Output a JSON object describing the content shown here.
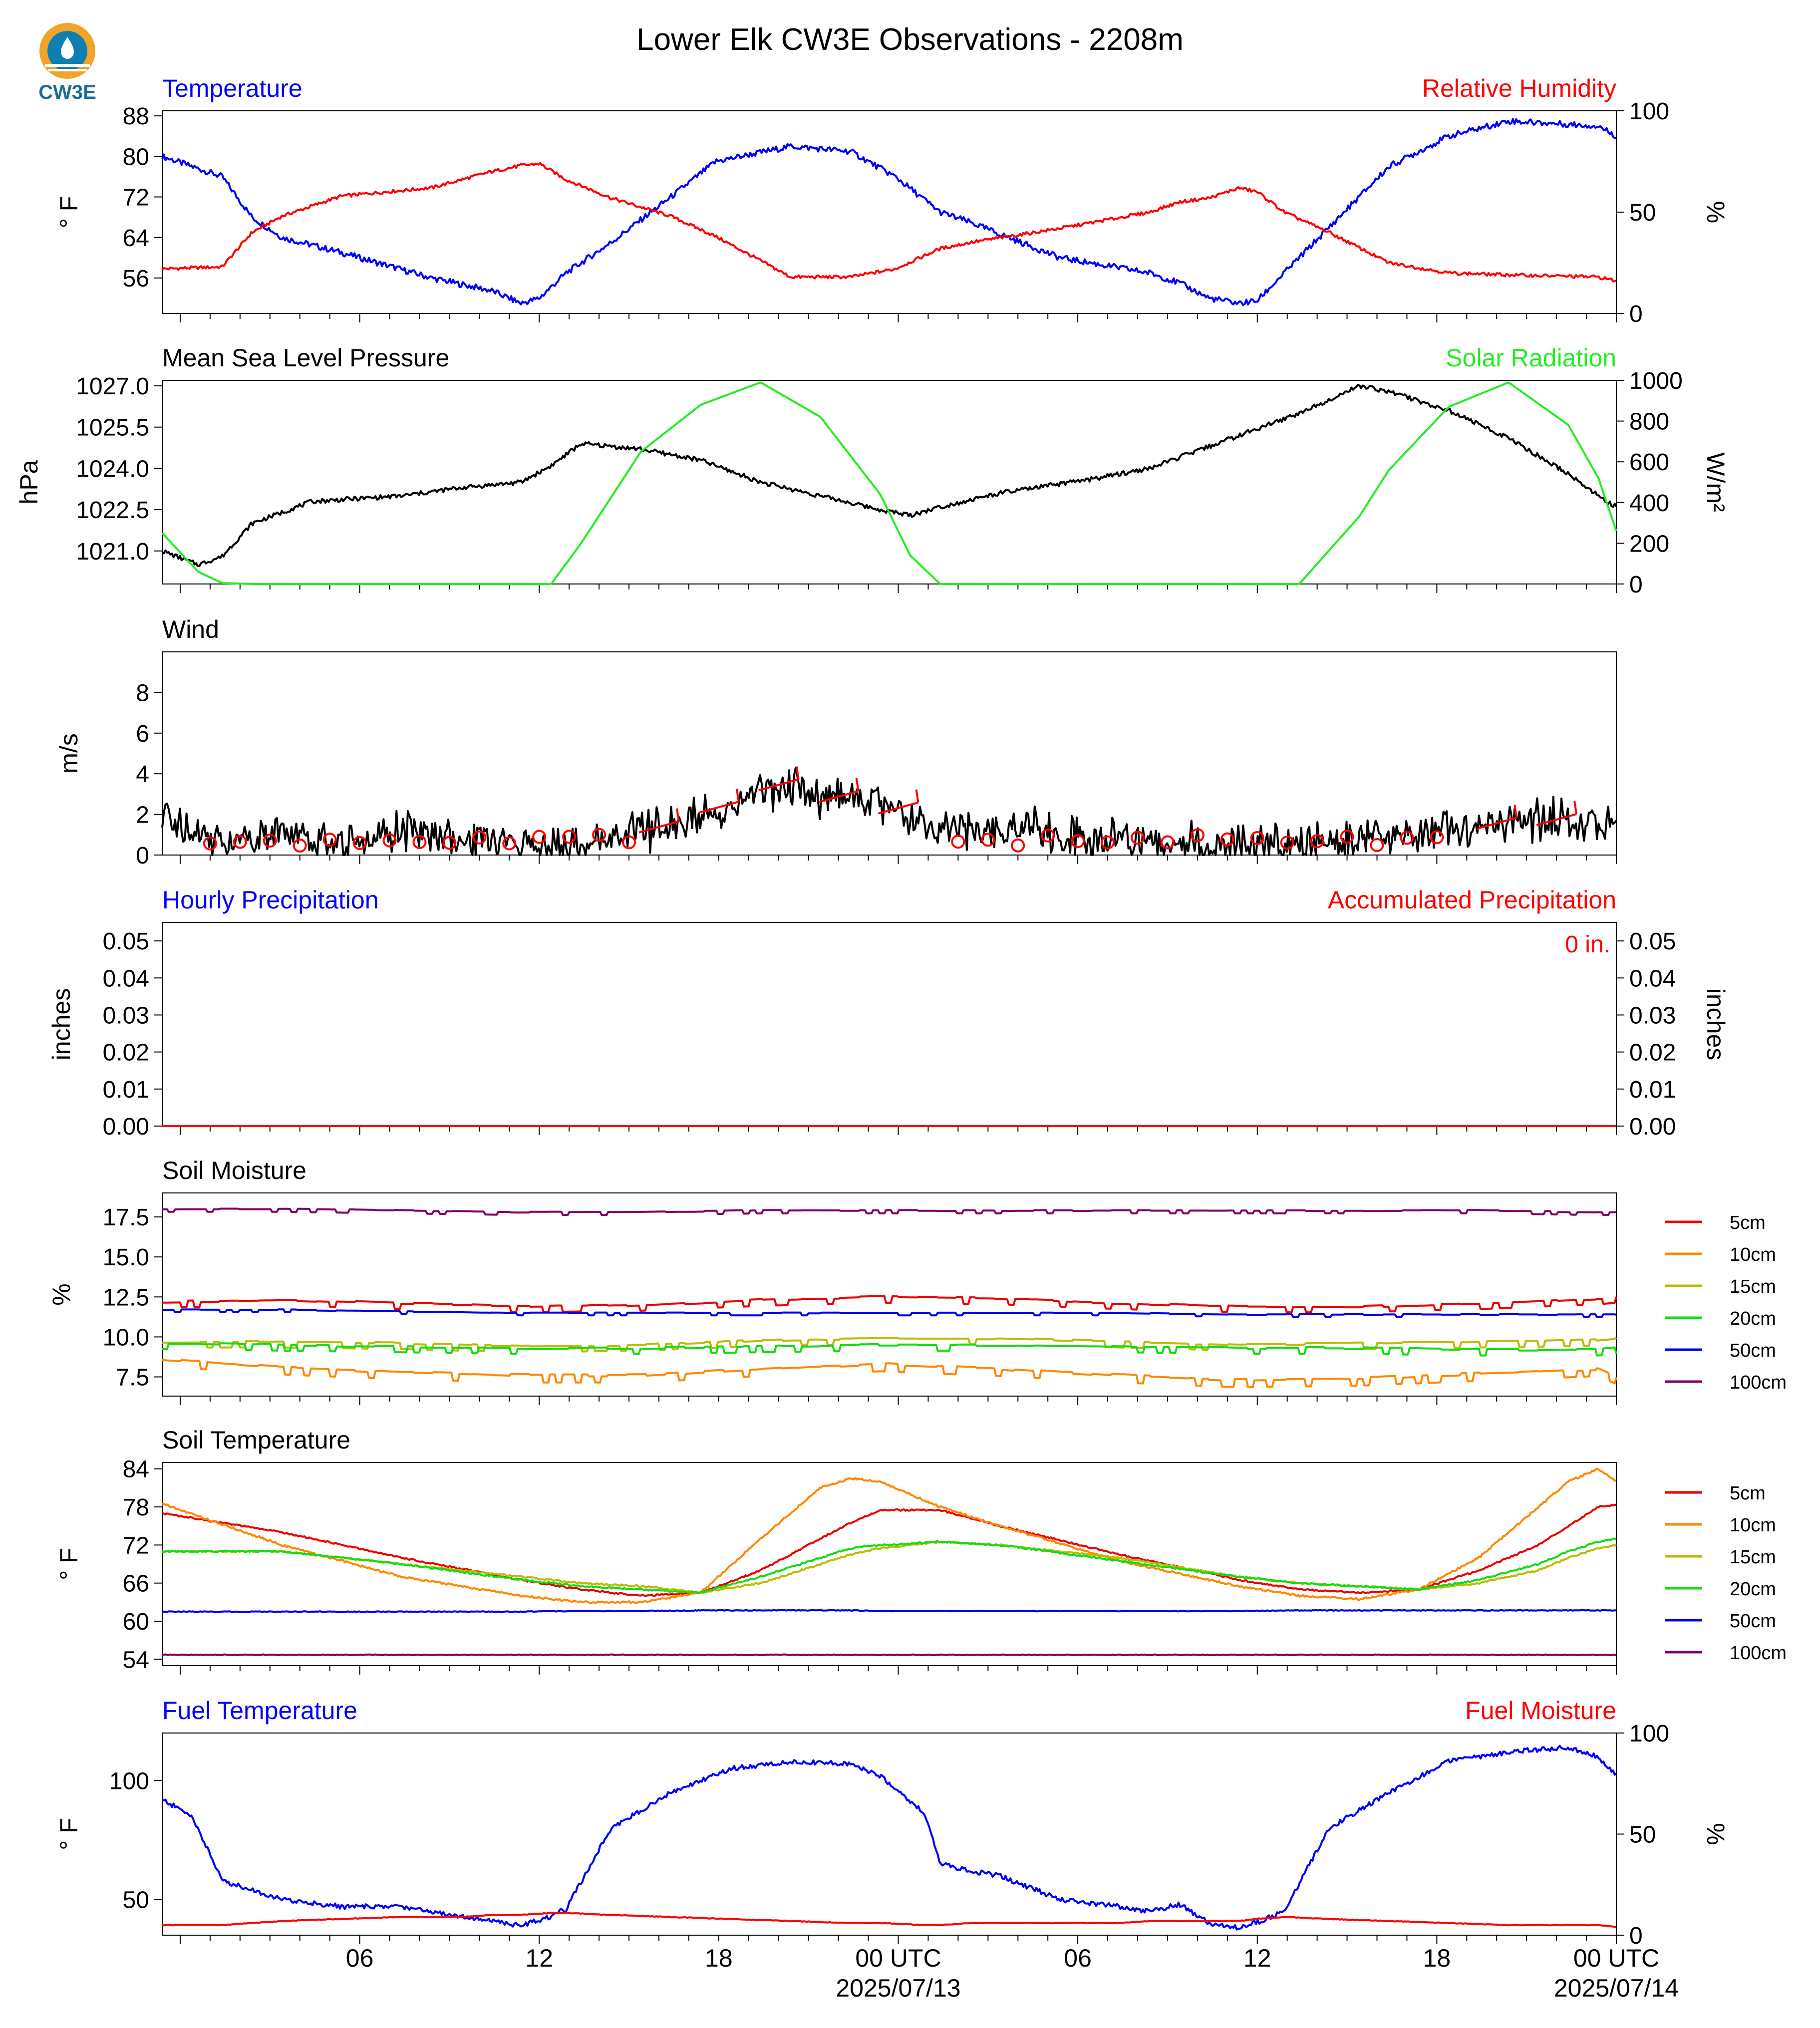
{
  "page": {
    "title": "Lower Elk CW3E Observations - 2208m",
    "logo_text": "CW3E",
    "x_ticks": [
      "06",
      "12",
      "18",
      "00 UTC",
      "06",
      "12",
      "18",
      "00 UTC"
    ],
    "x_dates": [
      "2025/07/13",
      "2025/07/14"
    ]
  },
  "colors": {
    "temperature": "#0000ff",
    "humidity": "#ff0000",
    "pressure": "#000000",
    "solar": "#22ee22",
    "wind": "#000000",
    "barbs": "#ff0000",
    "d5": "#ee0000",
    "d10": "#ff8800",
    "d15": "#bbbb00",
    "d20": "#11dd11",
    "d50": "#0000ee",
    "d100": "#800060"
  },
  "legend_labels": [
    "5cm",
    "10cm",
    "15cm",
    "20cm",
    "50cm",
    "100cm"
  ],
  "chart_data": [
    {
      "type": "line",
      "left_title": "Temperature",
      "right_title": "Relative Humidity",
      "ylabel": "° F",
      "ylabel2": "%",
      "yticks": [
        "56",
        "64",
        "72",
        "80",
        "88"
      ],
      "yticks2": [
        "0",
        "50",
        "100"
      ],
      "ylim": [
        49,
        89
      ],
      "ylim2": [
        0,
        100
      ],
      "x_hours": [
        0,
        2,
        3,
        4,
        6,
        9,
        11,
        12,
        12.6,
        13.5,
        15,
        17,
        18.5,
        21,
        23,
        24.5,
        26,
        27,
        30,
        33,
        34,
        35,
        36,
        36.6,
        37.5,
        39,
        41,
        43,
        45,
        48,
        48.6
      ],
      "series": [
        {
          "key": "temp",
          "axis": "left",
          "values": [
            80,
            76,
            68,
            64,
            61,
            56,
            53.5,
            51,
            52,
            57,
            63,
            72,
            79,
            82,
            81,
            76,
            69,
            67,
            60,
            57,
            55,
            52,
            51,
            51.5,
            57,
            66,
            78,
            84,
            87,
            86,
            84
          ]
        },
        {
          "key": "rh",
          "axis": "right",
          "values": [
            22,
            23,
            40,
            48,
            58,
            62,
            70,
            73,
            74,
            66,
            57,
            48,
            38,
            18,
            18,
            22,
            32,
            35,
            42,
            50,
            55,
            57,
            62,
            60,
            50,
            40,
            25,
            20,
            19,
            18,
            16
          ]
        }
      ]
    },
    {
      "type": "line",
      "left_title": "Mean Sea Level Pressure",
      "right_title": "Solar Radiation",
      "ylabel": "hPa",
      "ylabel2": "W/m²",
      "yticks": [
        "1021.0",
        "1022.5",
        "1024.0",
        "1025.5",
        "1027.0"
      ],
      "yticks2": [
        "0",
        "200",
        "400",
        "600",
        "800",
        "1000"
      ],
      "ylim": [
        1019.8,
        1027.2
      ],
      "ylim2": [
        0,
        1000
      ],
      "x_hours": [
        0,
        1.2,
        2,
        3,
        5,
        8,
        10,
        12,
        13,
        14,
        16,
        18,
        20,
        22,
        24,
        25,
        26,
        28,
        31,
        33,
        35,
        37,
        38,
        40,
        41,
        43,
        45,
        47,
        48,
        48.6
      ],
      "series": [
        {
          "key": "pressure",
          "axis": "left",
          "values": [
            1021.0,
            1020.5,
            1020.8,
            1022.0,
            1022.8,
            1023.0,
            1023.3,
            1023.5,
            1024.1,
            1024.9,
            1024.7,
            1024.3,
            1023.5,
            1023.0,
            1022.5,
            1022.3,
            1022.6,
            1023.1,
            1023.6,
            1024.0,
            1024.8,
            1025.6,
            1026.0,
            1027.0,
            1026.8,
            1026.1,
            1025.1,
            1023.8,
            1023.0,
            1022.6
          ]
        },
        {
          "key": "solar",
          "axis": "right",
          "values": [
            250,
            60,
            5,
            0,
            0,
            0,
            0,
            0,
            0,
            200,
            650,
            880,
            990,
            820,
            440,
            140,
            0,
            0,
            0,
            0,
            0,
            0,
            0,
            330,
            560,
            870,
            990,
            780,
            520,
            260
          ]
        }
      ]
    },
    {
      "type": "line",
      "left_title": "Wind",
      "right_title": "",
      "ylabel": "m/s",
      "ylabel2": "",
      "yticks": [
        "0",
        "2",
        "4",
        "6",
        "8"
      ],
      "yticks2": [],
      "ylim": [
        0,
        10
      ],
      "ylim2": [
        0,
        10
      ],
      "x_hours": [
        0,
        2,
        4,
        6,
        8,
        10,
        12,
        14,
        16,
        18,
        19,
        20,
        21,
        22,
        23,
        24,
        26,
        28,
        29,
        30,
        32,
        34,
        36,
        38,
        40,
        42,
        44,
        46,
        48,
        48.6
      ],
      "series": [
        {
          "key": "wind",
          "axis": "left",
          "values": [
            1.8,
            0.8,
            1.1,
            0.6,
            1.2,
            0.7,
            0.5,
            0.4,
            1.1,
            1.8,
            2.6,
            3.2,
            3.5,
            2.8,
            2.8,
            2.6,
            1.4,
            1.0,
            1.4,
            0.9,
            0.7,
            0.6,
            0.5,
            0.4,
            0.9,
            1.2,
            1.4,
            1.7,
            1.6,
            1.7
          ]
        }
      ]
    },
    {
      "type": "line",
      "left_title": "Hourly Precipitation",
      "right_title": "Accumulated Precipitation",
      "ylabel": "inches",
      "ylabel2": "inches",
      "yticks": [
        "0.00",
        "0.01",
        "0.02",
        "0.03",
        "0.04",
        "0.05"
      ],
      "yticks2": [
        "0.00",
        "0.01",
        "0.02",
        "0.03",
        "0.04",
        "0.05"
      ],
      "ylim": [
        0,
        0.055
      ],
      "ylim2": [
        0,
        0.055
      ],
      "annotation": "0 in.",
      "x_hours": [
        0,
        48.6
      ],
      "series": [
        {
          "key": "precip",
          "axis": "left",
          "values": [
            0,
            0
          ]
        }
      ]
    },
    {
      "type": "line",
      "left_title": "Soil Moisture",
      "right_title": "",
      "ylabel": "%",
      "ylabel2": "",
      "yticks": [
        "7.5",
        "10.0",
        "12.5",
        "15.0",
        "17.5"
      ],
      "yticks2": [],
      "ylim": [
        6.3,
        19.0
      ],
      "ylim2": [
        6.3,
        19.0
      ],
      "x_hours": [
        0,
        4,
        8,
        12,
        16,
        20,
        24,
        28,
        32,
        36,
        40,
        44,
        48,
        48.6
      ],
      "series": [
        {
          "name": "5cm",
          "key": "d5",
          "axis": "left",
          "values": [
            12.2,
            12.3,
            12.1,
            11.9,
            12.0,
            12.3,
            12.5,
            12.4,
            12.1,
            11.9,
            11.9,
            12.1,
            12.4,
            12.5
          ]
        },
        {
          "name": "10cm",
          "key": "d10",
          "axis": "left",
          "values": [
            8.6,
            8.1,
            7.8,
            7.6,
            7.6,
            8.0,
            8.3,
            8.0,
            7.6,
            7.3,
            7.4,
            7.7,
            8.0,
            7.5
          ]
        },
        {
          "name": "15cm",
          "key": "d15",
          "axis": "left",
          "values": [
            9.7,
            9.7,
            9.6,
            9.4,
            9.5,
            9.8,
            9.9,
            9.9,
            9.7,
            9.5,
            9.6,
            9.7,
            9.8,
            9.9
          ]
        },
        {
          "name": "20cm",
          "key": "d20",
          "axis": "left",
          "values": [
            9.6,
            9.5,
            9.4,
            9.3,
            9.3,
            9.4,
            9.5,
            9.5,
            9.4,
            9.3,
            9.3,
            9.2,
            9.2,
            9.3
          ]
        },
        {
          "name": "50cm",
          "key": "d50",
          "axis": "left",
          "values": [
            11.7,
            11.7,
            11.6,
            11.5,
            11.5,
            11.5,
            11.5,
            11.5,
            11.5,
            11.4,
            11.4,
            11.4,
            11.4,
            11.4
          ]
        },
        {
          "name": "100cm",
          "key": "d100",
          "axis": "left",
          "values": [
            18.0,
            18.0,
            17.9,
            17.8,
            17.8,
            17.9,
            17.9,
            17.9,
            17.9,
            17.9,
            17.9,
            17.9,
            17.8,
            17.8
          ]
        }
      ]
    },
    {
      "type": "line",
      "left_title": "Soil Temperature",
      "right_title": "",
      "ylabel": "° F",
      "ylabel2": "",
      "yticks": [
        "54",
        "60",
        "66",
        "72",
        "78",
        "84"
      ],
      "yticks2": [],
      "ylim": [
        53,
        85
      ],
      "ylim2": [
        53,
        85
      ],
      "x_hours": [
        0,
        4,
        8,
        12,
        14,
        16,
        18,
        20,
        22,
        23,
        24,
        26,
        28,
        32,
        36,
        38,
        40,
        42,
        44,
        46,
        47,
        48,
        48.6
      ],
      "series": [
        {
          "name": "5cm",
          "key": "d5",
          "axis": "left",
          "values": [
            77,
            74,
            70,
            66.5,
            65,
            64,
            64.5,
            68,
            73,
            75.5,
            77.5,
            77.5,
            75,
            70.5,
            66.5,
            65,
            64.5,
            65,
            68,
            72,
            75,
            78,
            78.3
          ]
        },
        {
          "name": "10cm",
          "key": "d10",
          "axis": "left",
          "values": [
            78.5,
            72,
            67,
            64,
            63,
            63,
            64.5,
            73,
            81,
            82.5,
            82,
            78,
            75,
            69.5,
            65.5,
            64,
            63.5,
            65,
            70,
            78,
            82,
            84,
            82
          ]
        },
        {
          "name": "15cm",
          "key": "d15",
          "axis": "left",
          "values": [
            71,
            71,
            69,
            67,
            66,
            65.5,
            64.5,
            66,
            69,
            70.5,
            71.5,
            72.5,
            72,
            70,
            67,
            66,
            65.5,
            65,
            66,
            68,
            70,
            71.5,
            72
          ]
        },
        {
          "name": "20cm",
          "key": "d20",
          "axis": "left",
          "values": [
            71,
            71,
            69,
            66.5,
            65.5,
            65,
            64.5,
            67,
            70,
            71.5,
            72,
            72.5,
            72,
            69.5,
            67,
            66,
            65.5,
            65,
            66.5,
            69,
            71,
            72.5,
            73
          ]
        },
        {
          "name": "50cm",
          "key": "d50",
          "axis": "left",
          "values": [
            61.5,
            61.5,
            61.5,
            61.5,
            61.6,
            61.6,
            61.7,
            61.7,
            61.7,
            61.7,
            61.6,
            61.6,
            61.6,
            61.6,
            61.6,
            61.7,
            61.7,
            61.7,
            61.7,
            61.7,
            61.7,
            61.7,
            61.7
          ]
        },
        {
          "name": "100cm",
          "key": "d100",
          "axis": "left",
          "values": [
            54.7,
            54.7,
            54.7,
            54.7,
            54.7,
            54.7,
            54.7,
            54.7,
            54.7,
            54.7,
            54.7,
            54.7,
            54.7,
            54.7,
            54.7,
            54.7,
            54.7,
            54.7,
            54.7,
            54.7,
            54.7,
            54.7,
            54.7
          ]
        }
      ]
    },
    {
      "type": "line",
      "left_title": "Fuel Temperature",
      "right_title": "Fuel Moisture",
      "ylabel": "° F",
      "ylabel2": "%",
      "yticks": [
        "50",
        "100"
      ],
      "yticks2": [
        "0",
        "50",
        "100"
      ],
      "ylim": [
        35,
        120
      ],
      "ylim2": [
        0,
        100
      ],
      "x_hours": [
        0,
        1,
        2,
        4,
        6,
        8,
        10,
        11,
        12,
        13,
        13.5,
        15,
        17,
        19,
        21,
        23,
        24,
        25.5,
        26,
        27,
        28,
        30,
        32,
        33,
        34,
        35,
        36,
        36.5,
        37.5,
        39,
        41,
        43,
        45,
        47,
        48,
        48.6
      ],
      "series": [
        {
          "key": "fuel_temp",
          "axis": "left",
          "values": [
            92,
            85,
            58,
            50,
            47,
            47,
            43,
            41,
            39,
            43,
            46,
            80,
            95,
            105,
            108,
            107,
            102,
            86,
            65,
            62,
            60,
            50,
            47,
            45,
            48,
            40,
            38,
            40,
            45,
            80,
            95,
            108,
            112,
            114,
            110,
            102
          ]
        },
        {
          "key": "fuel_moist",
          "axis": "right",
          "values": [
            5,
            5,
            5,
            7,
            8,
            9,
            9,
            10,
            10,
            11,
            11,
            10,
            9,
            8,
            7,
            6,
            6,
            5,
            5,
            6,
            6,
            6,
            6,
            7,
            7,
            7,
            7,
            8,
            9,
            8,
            7,
            6,
            5,
            5,
            5,
            4
          ]
        }
      ]
    }
  ]
}
